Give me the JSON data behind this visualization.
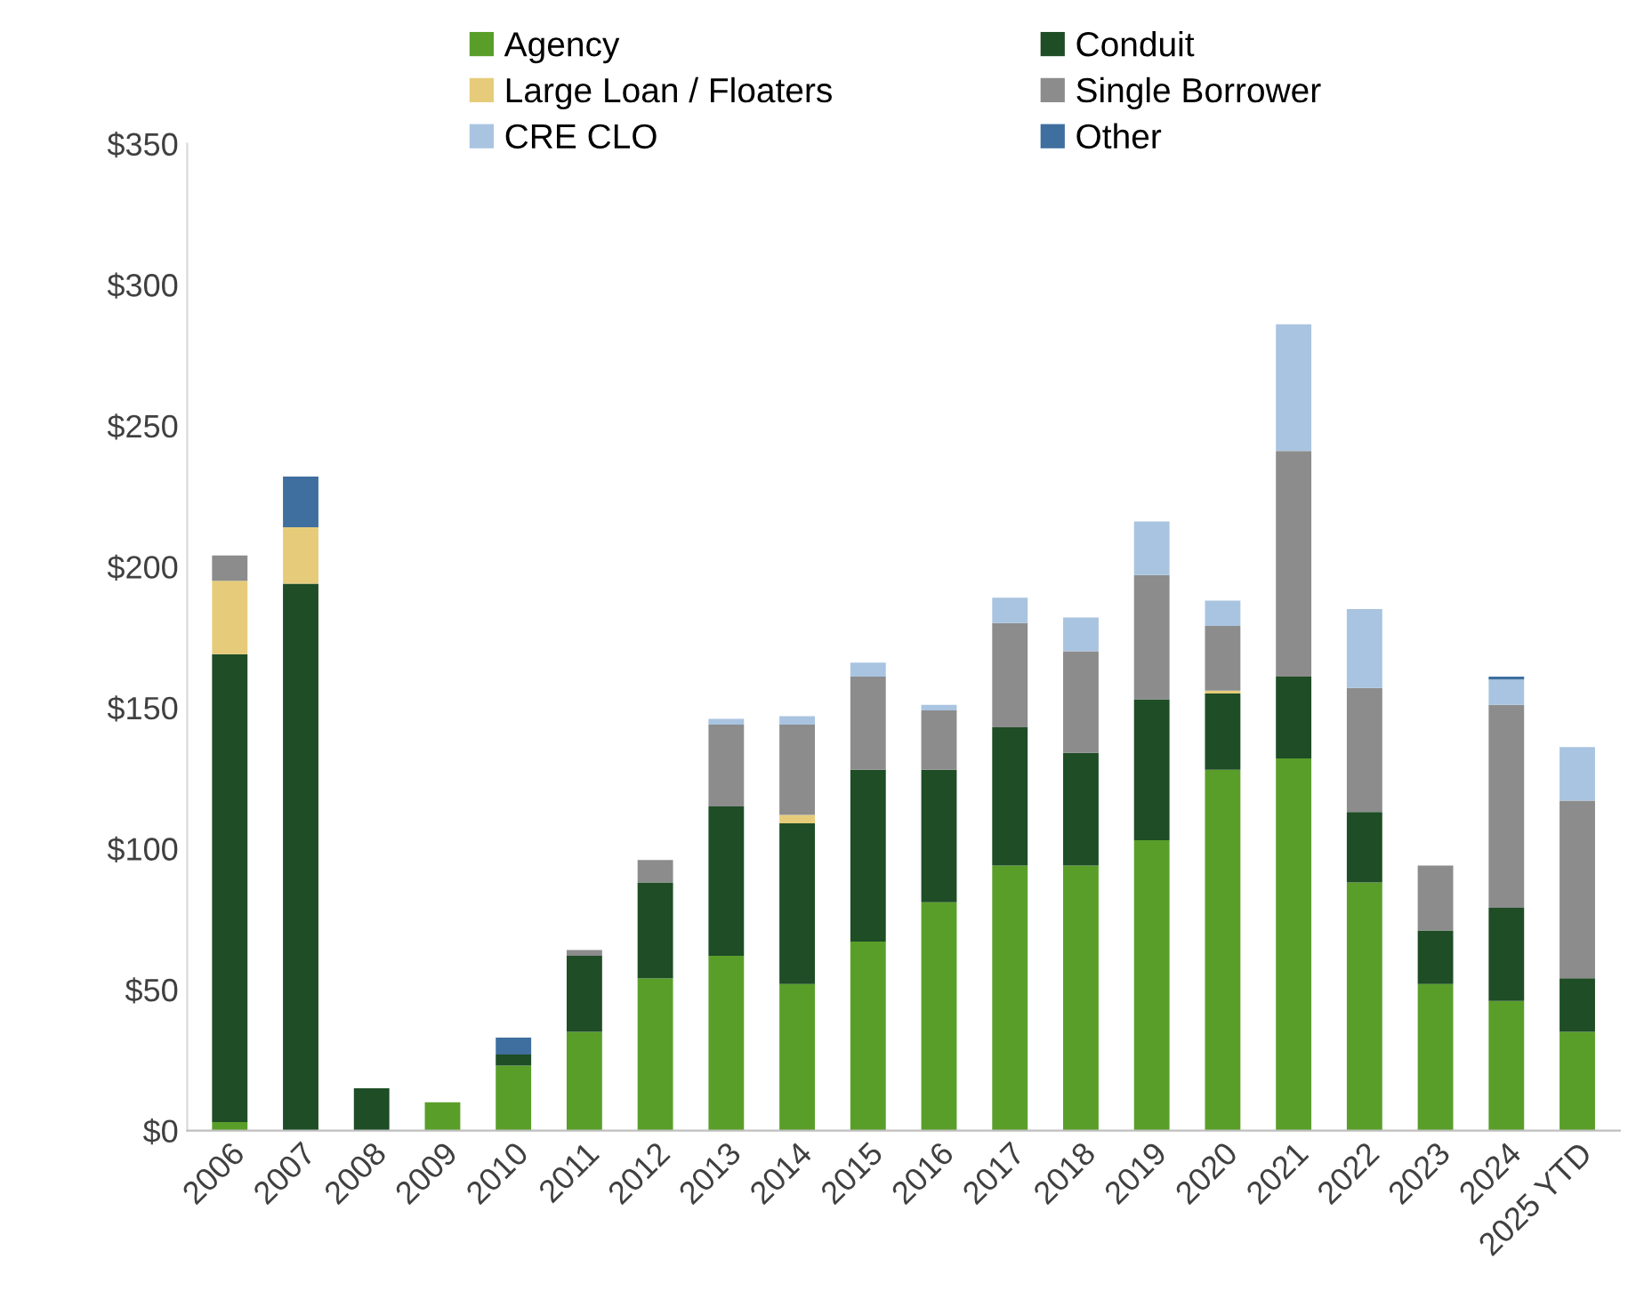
{
  "chart_data": {
    "type": "bar",
    "stacked": true,
    "legend": "top",
    "grid": false,
    "categories": [
      "2006",
      "2007",
      "2008",
      "2009",
      "2010",
      "2011",
      "2012",
      "2013",
      "2014",
      "2015",
      "2016",
      "2017",
      "2018",
      "2019",
      "2020",
      "2021",
      "2022",
      "2023",
      "2024",
      "2025 YTD"
    ],
    "ylim": [
      0,
      350
    ],
    "yticks": [
      {
        "value": 0,
        "label": "$0"
      },
      {
        "value": 50,
        "label": "$50"
      },
      {
        "value": 100,
        "label": "$100"
      },
      {
        "value": 150,
        "label": "$150"
      },
      {
        "value": 200,
        "label": "$200"
      },
      {
        "value": 250,
        "label": "$250"
      },
      {
        "value": 300,
        "label": "$300"
      },
      {
        "value": 350,
        "label": "$350"
      }
    ],
    "series": [
      {
        "name": "Agency",
        "color": "#5a9e2a",
        "values": [
          3,
          0,
          0,
          10,
          23,
          35,
          54,
          62,
          52,
          67,
          81,
          94,
          94,
          103,
          128,
          132,
          88,
          52,
          46,
          35
        ]
      },
      {
        "name": "Conduit",
        "color": "#1e4d26",
        "values": [
          166,
          194,
          15,
          0,
          4,
          27,
          34,
          53,
          57,
          61,
          47,
          49,
          40,
          50,
          27,
          29,
          25,
          19,
          33,
          19
        ]
      },
      {
        "name": "Large Loan / Floaters",
        "color": "#e6cc7a",
        "values": [
          26,
          20,
          0,
          0,
          0,
          0,
          0,
          0,
          3,
          0,
          0,
          0,
          0,
          0,
          1,
          0,
          0,
          0,
          0,
          0
        ]
      },
      {
        "name": "Single Borrower",
        "color": "#8c8c8c",
        "values": [
          9,
          0,
          0,
          0,
          0,
          2,
          8,
          29,
          32,
          33,
          21,
          37,
          36,
          44,
          23,
          80,
          44,
          23,
          72,
          63
        ]
      },
      {
        "name": "CRE CLO",
        "color": "#a9c4e0",
        "values": [
          0,
          0,
          0,
          0,
          0,
          0,
          0,
          2,
          3,
          5,
          2,
          9,
          12,
          19,
          9,
          45,
          28,
          0,
          9,
          19
        ]
      },
      {
        "name": "Other",
        "color": "#3f6f9e",
        "values": [
          0,
          18,
          0,
          0,
          6,
          0,
          0,
          0,
          0,
          0,
          0,
          0,
          0,
          0,
          0,
          0,
          0,
          0,
          1,
          0
        ]
      }
    ]
  }
}
